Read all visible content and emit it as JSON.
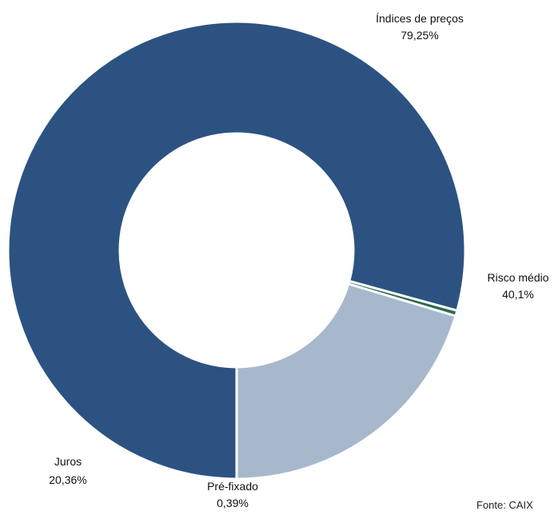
{
  "chart_data": {
    "type": "pie",
    "style": "donut",
    "title": "",
    "slices": [
      {
        "name": "Índices de preços",
        "value_label": "79,25%",
        "value": 79.25,
        "color": "#2c5282"
      },
      {
        "name": "Pré-fixado",
        "value_label": "0,39%",
        "value": 0.39,
        "color": "#2e6b4f"
      },
      {
        "name": "Juros",
        "value_label": "20,36%",
        "value": 20.36,
        "color": "#a8b8cc"
      }
    ],
    "annotations": [
      {
        "name": "Risco médio",
        "value_label": "40,1%",
        "value": 40.1
      }
    ],
    "legend": "none",
    "start_at": "bottom (6 o'clock), clockwise",
    "source_text": "Fonte: CAIX"
  }
}
